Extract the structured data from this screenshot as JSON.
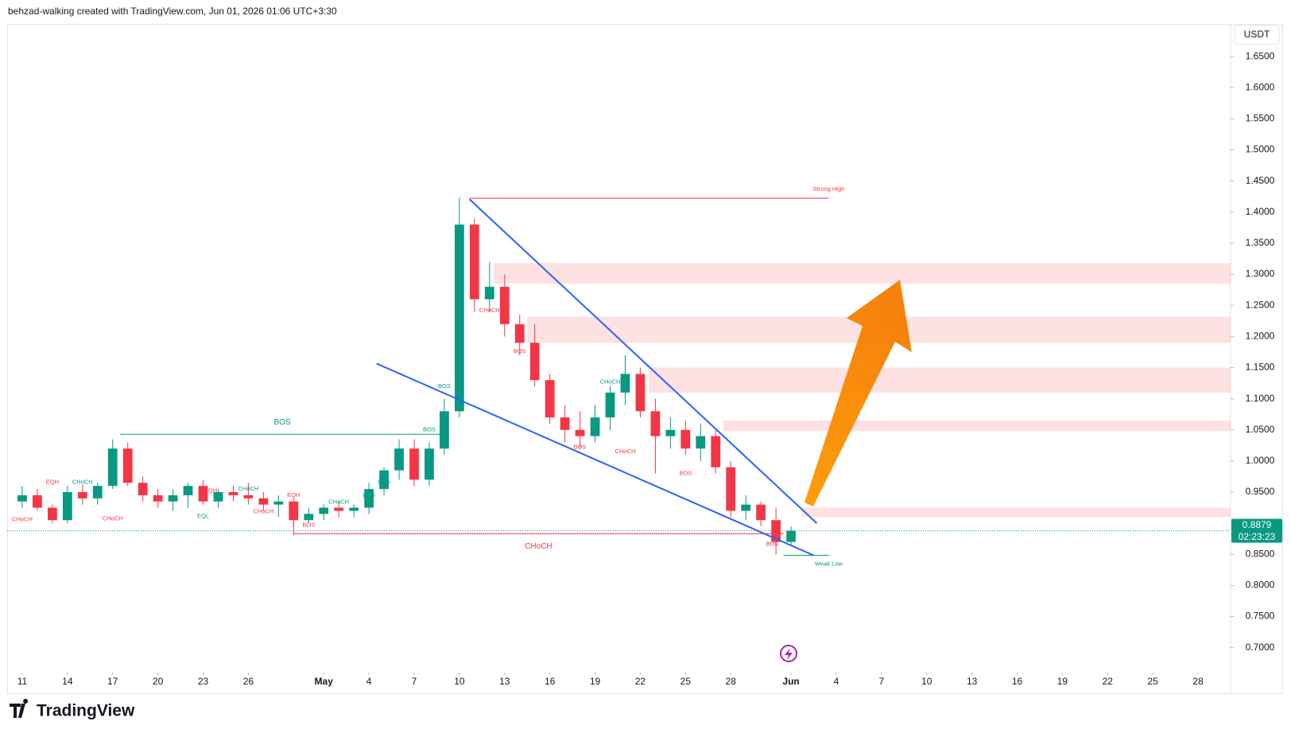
{
  "header": "behzad-walking created with TradingView.com, Jun 01, 2026 01:06 UTC+3:30",
  "logo": "TradingView",
  "chart_data": {
    "type": "candlestick",
    "currency": "USDT",
    "up_color": "#089981",
    "down_color": "#f23645",
    "x": [
      "2026-04-11",
      "2026-04-12",
      "2026-04-13",
      "2026-04-14",
      "2026-04-15",
      "2026-04-16",
      "2026-04-17",
      "2026-04-18",
      "2026-04-19",
      "2026-04-20",
      "2026-04-21",
      "2026-04-22",
      "2026-04-23",
      "2026-04-24",
      "2026-04-25",
      "2026-04-26",
      "2026-04-27",
      "2026-04-28",
      "2026-04-29",
      "2026-04-30",
      "2026-05-01",
      "2026-05-02",
      "2026-05-03",
      "2026-05-04",
      "2026-05-05",
      "2026-05-06",
      "2026-05-07",
      "2026-05-08",
      "2026-05-09",
      "2026-05-10",
      "2026-05-11",
      "2026-05-12",
      "2026-05-13",
      "2026-05-14",
      "2026-05-15",
      "2026-05-16",
      "2026-05-17",
      "2026-05-18",
      "2026-05-19",
      "2026-05-20",
      "2026-05-21",
      "2026-05-22",
      "2026-05-23",
      "2026-05-24",
      "2026-05-25",
      "2026-05-26",
      "2026-05-27",
      "2026-05-28",
      "2026-05-29",
      "2026-05-30",
      "2026-05-31",
      "2026-06-01"
    ],
    "open": [
      0.935,
      0.945,
      0.925,
      0.905,
      0.95,
      0.94,
      0.96,
      1.02,
      0.965,
      0.945,
      0.935,
      0.945,
      0.96,
      0.935,
      0.95,
      0.945,
      0.94,
      0.93,
      0.935,
      0.905,
      0.915,
      0.925,
      0.92,
      0.925,
      0.955,
      0.985,
      1.02,
      0.97,
      1.02,
      1.08,
      1.38,
      1.26,
      1.28,
      1.22,
      1.19,
      1.13,
      1.07,
      1.05,
      1.04,
      1.07,
      1.11,
      1.14,
      1.08,
      1.04,
      1.05,
      1.02,
      1.04,
      0.99,
      0.92,
      0.93,
      0.905,
      0.87
    ],
    "high": [
      0.96,
      0.955,
      0.93,
      0.96,
      0.962,
      0.965,
      1.035,
      1.03,
      0.975,
      0.955,
      0.955,
      0.965,
      0.97,
      0.955,
      0.96,
      0.965,
      0.95,
      0.945,
      0.94,
      0.925,
      0.93,
      0.935,
      0.93,
      0.965,
      0.99,
      1.035,
      1.035,
      1.03,
      1.1,
      1.423,
      1.39,
      1.32,
      1.3,
      1.235,
      1.22,
      1.14,
      1.09,
      1.08,
      1.09,
      1.12,
      1.17,
      1.15,
      1.1,
      1.07,
      1.065,
      1.06,
      1.05,
      1.0,
      0.945,
      0.935,
      0.925,
      0.895
    ],
    "low": [
      0.925,
      0.92,
      0.9,
      0.9,
      0.93,
      0.93,
      0.955,
      0.96,
      0.935,
      0.925,
      0.92,
      0.925,
      0.93,
      0.925,
      0.935,
      0.93,
      0.92,
      0.91,
      0.895,
      0.9,
      0.905,
      0.91,
      0.91,
      0.915,
      0.945,
      0.97,
      0.96,
      0.96,
      1.01,
      1.07,
      1.24,
      1.24,
      1.2,
      1.17,
      1.12,
      1.06,
      1.03,
      1.02,
      1.03,
      1.05,
      1.09,
      1.07,
      0.98,
      1.02,
      1.01,
      1.0,
      0.98,
      0.91,
      0.905,
      0.895,
      0.85,
      0.865
    ],
    "close": [
      0.945,
      0.925,
      0.905,
      0.95,
      0.94,
      0.96,
      1.02,
      0.965,
      0.945,
      0.935,
      0.945,
      0.96,
      0.935,
      0.95,
      0.945,
      0.94,
      0.93,
      0.935,
      0.905,
      0.915,
      0.925,
      0.92,
      0.925,
      0.955,
      0.985,
      1.02,
      0.97,
      1.02,
      1.08,
      1.38,
      1.26,
      1.28,
      1.22,
      1.19,
      1.13,
      1.07,
      1.05,
      1.04,
      1.07,
      1.11,
      1.14,
      1.08,
      1.04,
      1.05,
      1.02,
      1.04,
      0.99,
      0.92,
      0.93,
      0.905,
      0.87,
      0.8879
    ],
    "xlim": [
      "2026-04-10",
      "2026-06-30"
    ],
    "xticks": [
      {
        "value": "2026-04-11",
        "label": "11"
      },
      {
        "value": "2026-04-14",
        "label": "14"
      },
      {
        "value": "2026-04-17",
        "label": "17"
      },
      {
        "value": "2026-04-20",
        "label": "20"
      },
      {
        "value": "2026-04-23",
        "label": "23"
      },
      {
        "value": "2026-04-26",
        "label": "26"
      },
      {
        "value": "2026-05-01",
        "label": "May"
      },
      {
        "value": "2026-05-04",
        "label": "4"
      },
      {
        "value": "2026-05-07",
        "label": "7"
      },
      {
        "value": "2026-05-10",
        "label": "10"
      },
      {
        "value": "2026-05-13",
        "label": "13"
      },
      {
        "value": "2026-05-16",
        "label": "16"
      },
      {
        "value": "2026-05-19",
        "label": "19"
      },
      {
        "value": "2026-05-22",
        "label": "22"
      },
      {
        "value": "2026-05-25",
        "label": "25"
      },
      {
        "value": "2026-05-28",
        "label": "28"
      },
      {
        "value": "2026-06-01",
        "label": "Jun"
      },
      {
        "value": "2026-06-04",
        "label": "4"
      },
      {
        "value": "2026-06-07",
        "label": "7"
      },
      {
        "value": "2026-06-10",
        "label": "10"
      },
      {
        "value": "2026-06-13",
        "label": "13"
      },
      {
        "value": "2026-06-16",
        "label": "16"
      },
      {
        "value": "2026-06-19",
        "label": "19"
      },
      {
        "value": "2026-06-22",
        "label": "22"
      },
      {
        "value": "2026-06-25",
        "label": "25"
      },
      {
        "value": "2026-06-28",
        "label": "28"
      }
    ],
    "ylim": [
      0.66,
      1.7
    ],
    "yticks": [
      {
        "value": 0.7,
        "label": "0.7000"
      },
      {
        "value": 0.75,
        "label": "0.7500"
      },
      {
        "value": 0.8,
        "label": "0.8000"
      },
      {
        "value": 0.85,
        "label": "0.8500"
      },
      {
        "value": 0.9,
        "label": "0.9000"
      },
      {
        "value": 0.95,
        "label": "0.9500"
      },
      {
        "value": 1.0,
        "label": "1.0000"
      },
      {
        "value": 1.05,
        "label": "1.0500"
      },
      {
        "value": 1.1,
        "label": "1.1000"
      },
      {
        "value": 1.15,
        "label": "1.1500"
      },
      {
        "value": 1.2,
        "label": "1.2000"
      },
      {
        "value": 1.25,
        "label": "1.2500"
      },
      {
        "value": 1.3,
        "label": "1.3000"
      },
      {
        "value": 1.35,
        "label": "1.3500"
      },
      {
        "value": 1.4,
        "label": "1.4000"
      },
      {
        "value": 1.45,
        "label": "1.4500"
      },
      {
        "value": 1.5,
        "label": "1.5000"
      },
      {
        "value": 1.55,
        "label": "1.5500"
      },
      {
        "value": 1.6,
        "label": "1.6000"
      },
      {
        "value": 1.65,
        "label": "1.6500"
      }
    ],
    "last_price": {
      "value": 0.8879,
      "label": "0.8879"
    },
    "countdown": "02:23:23",
    "zones": [
      {
        "from": "2026-05-12T07:00",
        "low": 1.285,
        "high": 1.318
      },
      {
        "from": "2026-05-14T12:00",
        "low": 1.19,
        "high": 1.232
      },
      {
        "from": "2026-05-22T14:00",
        "low": 1.11,
        "high": 1.15
      },
      {
        "from": "2026-05-27T12:00",
        "low": 1.048,
        "high": 1.065
      },
      {
        "from": "2026-06-01T17:00",
        "low": 0.91,
        "high": 0.925
      }
    ],
    "trendlines": [
      {
        "x": [
          "2026-05-10T16:00",
          "2026-06-02T17:00"
        ],
        "y": [
          1.4208,
          0.9
        ]
      },
      {
        "x": [
          "2026-05-04T12:00",
          "2026-06-02T12:00"
        ],
        "y": [
          1.1567,
          0.8484
        ]
      }
    ],
    "levels": [
      {
        "label": "Strong High",
        "price": 1.4225,
        "from": "2026-05-10T16:00",
        "to": "2026-06-03T12:00",
        "color": "#f23645",
        "label_at": "end"
      },
      {
        "label": "Weak Low",
        "price": 0.8485,
        "from": "2026-05-31T12:00",
        "to": "2026-06-03T12:00",
        "color": "#089981",
        "label_at": "end"
      },
      {
        "label": "BOS",
        "price": 1.043,
        "from": "2026-04-17T12:00",
        "to": "2026-05-09T00:00",
        "color": "#089981",
        "label_at": "middle"
      },
      {
        "label": "CHoCH",
        "price": 0.8832,
        "from": "2026-04-29T00:00",
        "to": "2026-05-31T12:00",
        "color": "#f23645",
        "label_at": "middle"
      }
    ],
    "annotations": [
      {
        "text": "EQH",
        "x": "2026-04-13",
        "y": 0.966,
        "color": "#f23645"
      },
      {
        "text": "CHoCH",
        "x": "2026-04-15",
        "y": 0.966,
        "color": "#089981"
      },
      {
        "text": "CHoCH",
        "x": "2026-04-11",
        "y": 0.906,
        "color": "#f23645"
      },
      {
        "text": "CHoCH",
        "x": "2026-04-17",
        "y": 0.907,
        "color": "#f23645"
      },
      {
        "text": "EQL",
        "x": "2026-04-23",
        "y": 0.911,
        "color": "#089981"
      },
      {
        "text": "EQH",
        "x": "2026-04-23T12:00",
        "y": 0.952,
        "color": "#f23645"
      },
      {
        "text": "CHoCH",
        "x": "2026-04-26",
        "y": 0.955,
        "color": "#089981"
      },
      {
        "text": "EQH",
        "x": "2026-04-29",
        "y": 0.945,
        "color": "#f23645"
      },
      {
        "text": "CHoCH",
        "x": "2026-04-27",
        "y": 0.919,
        "color": "#f23645"
      },
      {
        "text": "BOS",
        "x": "2026-04-30",
        "y": 0.897,
        "color": "#f23645"
      },
      {
        "text": "CHoCH",
        "x": "2026-05-02",
        "y": 0.934,
        "color": "#089981"
      },
      {
        "text": "BOS",
        "x": "2026-05-04",
        "y": 0.944,
        "color": "#089981"
      },
      {
        "text": "BOS",
        "x": "2026-05-05",
        "y": 0.966,
        "color": "#089981"
      },
      {
        "text": "BOS",
        "x": "2026-05-08",
        "y": 1.05,
        "color": "#089981"
      },
      {
        "text": "BOS",
        "x": "2026-05-09",
        "y": 1.12,
        "color": "#089981"
      },
      {
        "text": "CHoCH",
        "x": "2026-05-12",
        "y": 1.242,
        "color": "#f23645"
      },
      {
        "text": "BOS",
        "x": "2026-05-14",
        "y": 1.176,
        "color": "#f23645"
      },
      {
        "text": "BOS",
        "x": "2026-05-18",
        "y": 1.022,
        "color": "#f23645"
      },
      {
        "text": "CHoCH",
        "x": "2026-05-20",
        "y": 1.127,
        "color": "#089981"
      },
      {
        "text": "CHoCH",
        "x": "2026-05-21",
        "y": 1.015,
        "color": "#f23645"
      },
      {
        "text": "BOS",
        "x": "2026-05-25",
        "y": 0.98,
        "color": "#f23645"
      },
      {
        "text": "BOS",
        "x": "2026-05-30T18:00",
        "y": 0.866,
        "color": "#f23645"
      }
    ]
  }
}
